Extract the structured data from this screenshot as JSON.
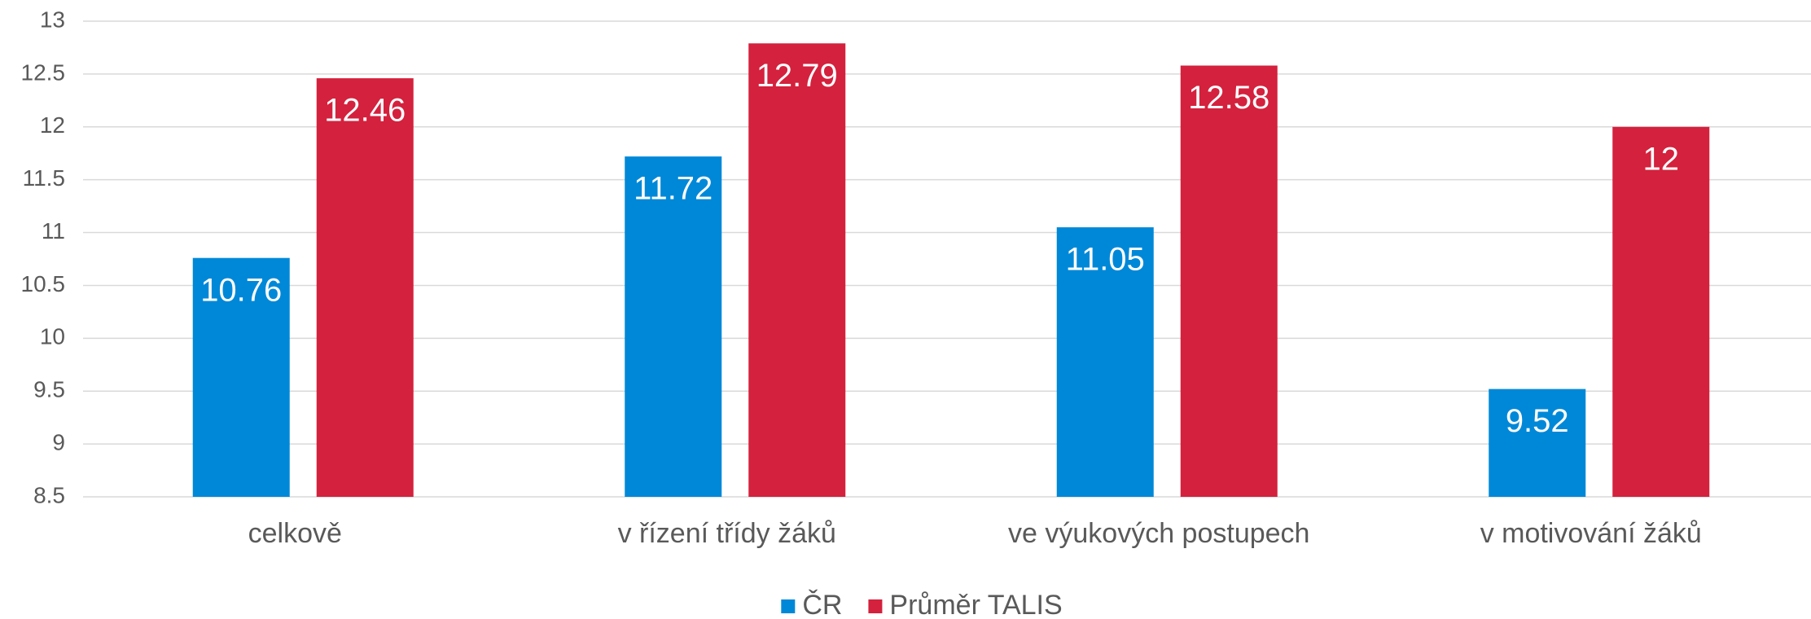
{
  "chart_data": {
    "type": "bar",
    "categories": [
      "celkově",
      "v řízení třídy žáků",
      "ve výukových postupech",
      "v motivování žáků"
    ],
    "series": [
      {
        "name": "ČR",
        "color": "#0088d8",
        "values": [
          10.76,
          11.72,
          11.05,
          9.52
        ]
      },
      {
        "name": "Průměr TALIS",
        "color": "#d4213d",
        "values": [
          12.46,
          12.79,
          12.58,
          12
        ]
      }
    ],
    "ylim": [
      8.5,
      13
    ],
    "yticks": [
      8.5,
      9,
      9.5,
      10,
      10.5,
      11,
      11.5,
      12,
      12.5,
      13
    ],
    "grid": true,
    "legend": "bottom"
  }
}
